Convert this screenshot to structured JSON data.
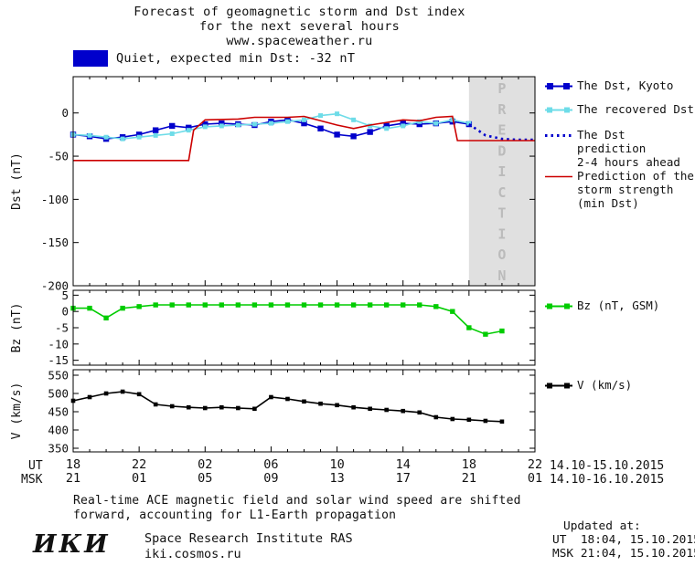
{
  "header": {
    "line1": "Forecast of geomagnetic storm and Dst index",
    "line2": "for the next several hours",
    "line3": "www.spaceweather.ru"
  },
  "status": {
    "label": "Quiet, expected min Dst: -32 nT"
  },
  "colors": {
    "blue": "#0000cc",
    "cyan": "#6edce8",
    "red": "#cc0000",
    "green": "#00cc00",
    "black": "#000000",
    "band": "#e0e0e0",
    "band_text": "#bbbbbb"
  },
  "legend": [
    {
      "lines": [
        "The Dst, Kyoto"
      ],
      "color": "#0000cc",
      "style": "solid-squares"
    },
    {
      "lines": [
        "The recovered Dst"
      ],
      "color": "#6edce8",
      "style": "solid-squares"
    },
    {
      "lines": [
        "The Dst prediction",
        "2-4 hours ahead"
      ],
      "color": "#0000cc",
      "style": "dotted"
    },
    {
      "lines": [
        "Prediction of the",
        "storm strength",
        "(min Dst)"
      ],
      "color": "#cc0000",
      "style": "line"
    },
    {
      "lines": [
        "Bz (nT, GSM)"
      ],
      "color": "#00cc00",
      "style": "solid-squares"
    },
    {
      "lines": [
        "V (km/s)"
      ],
      "color": "#000000",
      "style": "solid-squares"
    }
  ],
  "footer": {
    "line1": "Real-time ACE magnetic field and solar wind speed are shifted",
    "line2": "forward, accounting for L1-Earth propagation"
  },
  "updated": {
    "title": "Updated at:",
    "ut": "UT  18:04, 15.10.2015",
    "msk": "MSK 21:04, 15.10.2015"
  },
  "branding": {
    "logo": "ИКИ",
    "institute": "Space Research Institute RAS",
    "site": "iki.cosmos.ru"
  },
  "chart_data": {
    "type": "line",
    "title": "Forecast of geomagnetic storm and Dst index for the next several hours",
    "grid": false,
    "legend_position": "right",
    "x_axis": {
      "label_ut": "UT",
      "label_msk": "MSK",
      "start_hour_ut": 18,
      "total_hours": 28,
      "tick_interval_hours": 4,
      "ut_ticks": [
        "18",
        "22",
        "02",
        "06",
        "10",
        "14",
        "18",
        "22"
      ],
      "msk_ticks": [
        "21",
        "01",
        "05",
        "09",
        "13",
        "17",
        "21",
        "01"
      ],
      "ut_date_range": "14.10-15.10.2015",
      "msk_date_range": "14.10-16.10.2015"
    },
    "panels": [
      {
        "id": "dst",
        "ylabel": "Dst (nT)",
        "ylim": [
          -200,
          42
        ],
        "yticks": [
          0,
          -50,
          -100,
          -150,
          -200
        ],
        "prediction_band": {
          "from_hour": 24,
          "to_hour": 28,
          "label": "PREDICTION"
        },
        "series": [
          {
            "id": "dst-kyoto",
            "name": "The Dst, Kyoto",
            "color": "#0000cc",
            "style": "solid",
            "marker": true,
            "marker_size": 6.4,
            "x": [
              0,
              1,
              2,
              3,
              4,
              5,
              6,
              7,
              8,
              9,
              10,
              11,
              12,
              13,
              14,
              15,
              16,
              17,
              18,
              19,
              20,
              21,
              22,
              23,
              24
            ],
            "y": [
              -25,
              -27,
              -30,
              -28,
              -25,
              -20,
              -15,
              -17,
              -13,
              -12,
              -13,
              -14,
              -10,
              -8,
              -12,
              -18,
              -25,
              -27,
              -22,
              -15,
              -12,
              -13,
              -12,
              -10,
              -13
            ]
          },
          {
            "id": "recovered-dst",
            "name": "The recovered Dst",
            "color": "#6edce8",
            "style": "solid",
            "marker": true,
            "marker_size": 5,
            "x": [
              0,
              1,
              2,
              3,
              4,
              5,
              6,
              7,
              8,
              9,
              10,
              11,
              12,
              13,
              14,
              15,
              16,
              17,
              18,
              19,
              20,
              21,
              22,
              23,
              24
            ],
            "y": [
              -25,
              -26,
              -28,
              -30,
              -28,
              -26,
              -24,
              -20,
              -16,
              -15,
              -14,
              -13,
              -12,
              -10,
              -8,
              -3,
              -1,
              -8,
              -15,
              -18,
              -15,
              -10,
              -12,
              -8,
              -12
            ]
          },
          {
            "id": "dst-prediction",
            "name": "The Dst prediction 2-4 hours ahead",
            "color": "#0000cc",
            "style": "dotted",
            "marker": false,
            "x": [
              24,
              25,
              26,
              27,
              28
            ],
            "y": [
              -13,
              -26,
              -30,
              -31,
              -31
            ]
          },
          {
            "id": "storm-strength-prediction",
            "name": "Prediction of the storm strength (min Dst)",
            "color": "#cc0000",
            "style": "solid",
            "marker": false,
            "x": [
              0,
              7,
              7.3,
              8,
              10,
              11,
              13,
              14,
              16,
              17,
              18,
              20,
              21,
              22,
              23,
              23.3,
              28
            ],
            "y": [
              -55,
              -55,
              -20,
              -8,
              -7,
              -5,
              -5,
              -4,
              -14,
              -18,
              -14,
              -8,
              -9,
              -5,
              -4,
              -32,
              -32
            ]
          }
        ]
      },
      {
        "id": "bz",
        "ylabel": "Bz (nT)",
        "ylim": [
          -16.5,
          6.5
        ],
        "yticks": [
          5,
          0,
          -5,
          -10,
          -15
        ],
        "series": [
          {
            "id": "bz",
            "name": "Bz (nT, GSM)",
            "color": "#00cc00",
            "style": "solid",
            "marker": true,
            "marker_size": 5.4,
            "x": [
              0,
              1,
              2,
              3,
              4,
              5,
              6,
              7,
              8,
              9,
              10,
              11,
              12,
              13,
              14,
              15,
              16,
              17,
              18,
              19,
              20,
              21,
              22,
              23,
              24,
              25,
              26
            ],
            "y": [
              1,
              1,
              -2,
              1,
              1.5,
              2,
              2,
              2,
              2,
              2,
              2,
              2,
              2,
              2,
              2,
              2,
              2,
              2,
              2,
              2,
              2,
              2,
              1.5,
              0,
              -5,
              -7,
              -6
            ]
          }
        ]
      },
      {
        "id": "v",
        "ylabel": "V (km/s)",
        "ylim": [
          340,
          565
        ],
        "yticks": [
          550,
          500,
          450,
          400,
          350
        ],
        "series": [
          {
            "id": "v",
            "name": "V (km/s)",
            "color": "#000000",
            "style": "solid",
            "marker": true,
            "marker_size": 4.6,
            "x": [
              0,
              1,
              2,
              3,
              4,
              5,
              6,
              7,
              8,
              9,
              10,
              11,
              12,
              13,
              14,
              15,
              16,
              17,
              18,
              19,
              20,
              21,
              22,
              23,
              24,
              25,
              26
            ],
            "y": [
              480,
              490,
              500,
              505,
              498,
              470,
              465,
              462,
              460,
              462,
              460,
              458,
              490,
              485,
              478,
              472,
              468,
              462,
              458,
              455,
              452,
              448,
              435,
              430,
              428,
              425,
              423
            ]
          }
        ]
      }
    ]
  }
}
